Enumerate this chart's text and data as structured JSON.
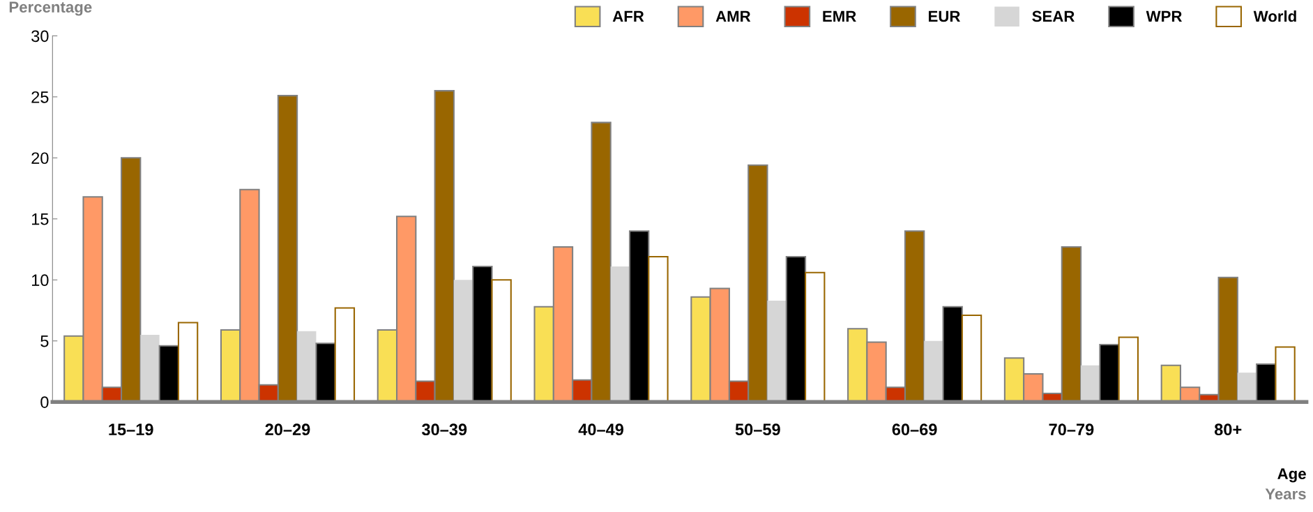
{
  "chart_data": {
    "type": "bar",
    "ylabel": "Percentage",
    "xlabel": "Age",
    "annotations": [
      "Years"
    ],
    "categories": [
      "15–19",
      "20–29",
      "30–39",
      "40–49",
      "50–59",
      "60–69",
      "70–79",
      "80+"
    ],
    "series": [
      {
        "name": "AFR",
        "color": "#f9df55",
        "values": [
          5.4,
          5.9,
          5.9,
          7.8,
          8.6,
          6.0,
          3.6,
          3.0
        ]
      },
      {
        "name": "AMR",
        "color": "#ff9966",
        "values": [
          16.8,
          17.4,
          15.2,
          12.7,
          9.3,
          4.9,
          2.3,
          1.2
        ]
      },
      {
        "name": "EMR",
        "color": "#cc3300",
        "values": [
          1.2,
          1.4,
          1.7,
          1.8,
          1.7,
          1.2,
          0.7,
          0.6
        ]
      },
      {
        "name": "EUR",
        "color": "#996600",
        "values": [
          20.0,
          25.1,
          25.5,
          22.9,
          19.4,
          14.0,
          12.7,
          10.2
        ]
      },
      {
        "name": "SEAR",
        "color": "#d6d6d6",
        "values": [
          5.5,
          5.8,
          10.0,
          11.1,
          8.3,
          5.0,
          3.0,
          2.4
        ]
      },
      {
        "name": "WPR",
        "color": "#000000",
        "values": [
          4.6,
          4.8,
          11.1,
          14.0,
          11.9,
          7.8,
          4.7,
          3.1
        ]
      },
      {
        "name": "World",
        "color": "#ffffff",
        "values": [
          6.5,
          7.7,
          10.0,
          11.9,
          10.6,
          7.1,
          5.3,
          4.5
        ]
      }
    ],
    "ylim": [
      0,
      30
    ],
    "yticks": [
      0,
      5,
      10,
      15,
      20,
      25,
      30
    ],
    "grid": false,
    "legend": "top right"
  }
}
